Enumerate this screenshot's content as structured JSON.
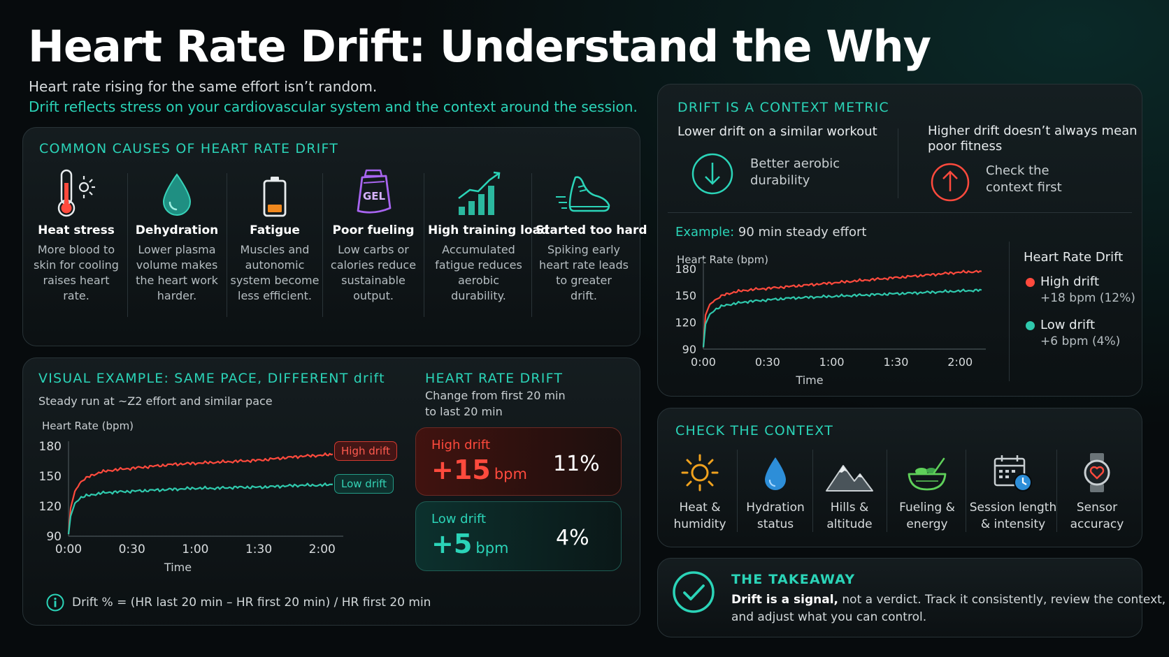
{
  "title": "Heart Rate Drift: Understand the Why",
  "subtitle_line1": "Heart rate rising for the same effort isn’t random.",
  "subtitle_line2": "Drift reflects stress on your cardiovascular system and the context around the session.",
  "causes": {
    "heading": "COMMON CAUSES OF HEART RATE DRIFT",
    "items": [
      {
        "name": "Heat stress",
        "lines": [
          "More blood to",
          "skin for cooling",
          "raises heart rate."
        ],
        "icon": "thermometer-icon"
      },
      {
        "name": "Dehydration",
        "lines": [
          "Lower plasma",
          "volume makes",
          "the heart work",
          "harder."
        ],
        "icon": "water-drop-icon"
      },
      {
        "name": "Fatigue",
        "lines": [
          "Muscles and",
          "autonomic",
          "system become",
          "less efficient."
        ],
        "icon": "battery-low-icon"
      },
      {
        "name": "Poor fueling",
        "lines": [
          "Low carbs or",
          "calories reduce",
          "sustainable",
          "output."
        ],
        "icon": "gel-pack-icon",
        "icon_text": "GEL"
      },
      {
        "name": "High training load",
        "lines": [
          "Accumulated",
          "fatigue reduces",
          "aerobic",
          "durability."
        ],
        "icon": "rising-bars-icon"
      },
      {
        "name": "Started too hard",
        "lines": [
          "Spiking early",
          "heart rate leads",
          "to greater",
          "drift."
        ],
        "icon": "running-shoe-icon"
      }
    ]
  },
  "visual_example": {
    "heading": "VISUAL EXAMPLE: SAME PACE, DIFFERENT drift",
    "description": "Steady run at ~Z2 effort and similar pace",
    "formula": "Drift % = (HR last 20 min – HR first 20 min) / HR first 20 min"
  },
  "chart_data": [
    {
      "type": "line",
      "title": "",
      "ylabel": "Heart Rate (bpm)",
      "xlabel": "Time",
      "x_ticks": [
        "0:00",
        "0:30",
        "1:00",
        "1:30",
        "2:00"
      ],
      "y_ticks": [
        90,
        120,
        150,
        180
      ],
      "ylim": [
        90,
        185
      ],
      "xlim_minutes": [
        0,
        130
      ],
      "series": [
        {
          "name": "High drift",
          "color": "#ff4a3d",
          "x": [
            0,
            1,
            3,
            6,
            10,
            15,
            20,
            30,
            40,
            50,
            60,
            70,
            80,
            90,
            100,
            110,
            120,
            125
          ],
          "y": [
            92,
            118,
            135,
            145,
            150,
            154,
            156,
            158,
            160,
            162,
            163,
            164,
            165,
            166,
            168,
            170,
            171,
            172
          ]
        },
        {
          "name": "Low drift",
          "color": "#2fc9ad",
          "x": [
            0,
            1,
            3,
            6,
            10,
            15,
            20,
            30,
            40,
            50,
            60,
            70,
            80,
            90,
            100,
            110,
            120,
            125
          ],
          "y": [
            92,
            110,
            123,
            129,
            131,
            133,
            134,
            135,
            136,
            137,
            138,
            138,
            139,
            139,
            140,
            141,
            141,
            142
          ]
        }
      ]
    },
    {
      "type": "line",
      "title": "",
      "ylabel": "Heart Rate (bpm)",
      "xlabel": "Time",
      "x_ticks": [
        "0:00",
        "0:30",
        "1:00",
        "1:30",
        "2:00"
      ],
      "y_ticks": [
        90,
        120,
        150,
        180
      ],
      "ylim": [
        90,
        190
      ],
      "xlim_minutes": [
        0,
        132
      ],
      "series": [
        {
          "name": "High drift",
          "color": "#ff4a3d",
          "x": [
            0,
            1,
            3,
            6,
            10,
            15,
            20,
            30,
            40,
            50,
            60,
            70,
            80,
            90,
            100,
            110,
            120,
            130
          ],
          "y": [
            92,
            128,
            140,
            146,
            151,
            154,
            156,
            158,
            160,
            162,
            164,
            166,
            168,
            170,
            172,
            174,
            176,
            177
          ]
        },
        {
          "name": "Low drift",
          "color": "#2fc9ad",
          "x": [
            0,
            1,
            3,
            6,
            10,
            15,
            20,
            30,
            40,
            50,
            60,
            70,
            80,
            90,
            100,
            110,
            120,
            130
          ],
          "y": [
            92,
            118,
            129,
            135,
            139,
            141,
            143,
            145,
            147,
            148,
            149,
            150,
            151,
            152,
            153,
            154,
            155,
            156
          ]
        }
      ]
    }
  ],
  "drift_summary": {
    "heading": "HEART RATE DRIFT",
    "desc_line1": "Change from first 20 min",
    "desc_line2": "to last 20 min",
    "high": {
      "label": "High drift",
      "value": "+15",
      "unit": "bpm",
      "pct": "11%"
    },
    "low": {
      "label": "Low drift",
      "value": "+5",
      "unit": "bpm",
      "pct": "4%"
    }
  },
  "tags": {
    "high": "High drift",
    "low": "Low drift"
  },
  "context_metric": {
    "heading": "DRIFT IS A CONTEXT METRIC",
    "left_title": "Lower drift on a similar workout",
    "left_text1": "Better aerobic",
    "left_text2": "durability",
    "right_title1": "Higher drift doesn’t always mean",
    "right_title2": "poor fitness",
    "right_text1": "Check the",
    "right_text2": "context first",
    "example_label": "Example:",
    "example_text": "90 min steady effort",
    "legend_title": "Heart Rate Drift",
    "legend_high": "High drift",
    "legend_high_value": "+18 bpm (12%)",
    "legend_low": "Low drift",
    "legend_low_value": "+6 bpm (4%)"
  },
  "check_context": {
    "heading": "CHECK THE CONTEXT",
    "items": [
      {
        "l1": "Heat &",
        "l2": "humidity",
        "icon": "sun-icon"
      },
      {
        "l1": "Hydration",
        "l2": "status",
        "icon": "water-drop-icon"
      },
      {
        "l1": "Hills &",
        "l2": "altitude",
        "icon": "mountain-icon"
      },
      {
        "l1": "Fueling &",
        "l2": "energy",
        "icon": "bowl-icon"
      },
      {
        "l1": "Session length",
        "l2": "& intensity",
        "icon": "calendar-clock-icon"
      },
      {
        "l1": "Sensor",
        "l2": "accuracy",
        "icon": "smartwatch-icon"
      }
    ]
  },
  "takeaway": {
    "heading": "THE TAKEAWAY",
    "line1_bold": "Drift is a signal,",
    "line1_rest": " not a verdict. Track it consistently, review the context,",
    "line2": "and adjust what you can control."
  },
  "colors": {
    "accent": "#2bd4b8",
    "high": "#ff4a3d",
    "low": "#2fc9ad"
  }
}
